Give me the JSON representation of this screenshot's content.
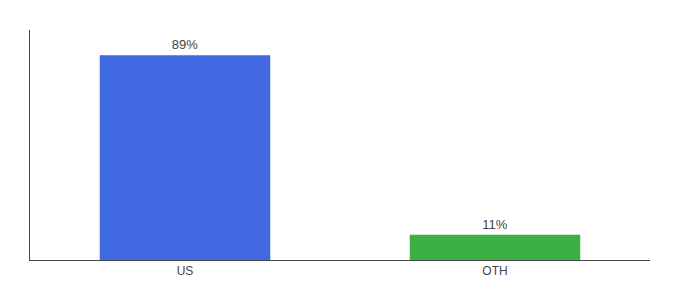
{
  "chart_data": {
    "type": "bar",
    "categories": [
      "US",
      "OTH"
    ],
    "values": [
      89,
      11
    ],
    "value_labels": [
      "89%",
      "11%"
    ],
    "colors": [
      "#4169E1",
      "#3CB043"
    ],
    "ylim": [
      0,
      100
    ],
    "data_labels": true,
    "tick_labels": "x",
    "grid": false
  }
}
